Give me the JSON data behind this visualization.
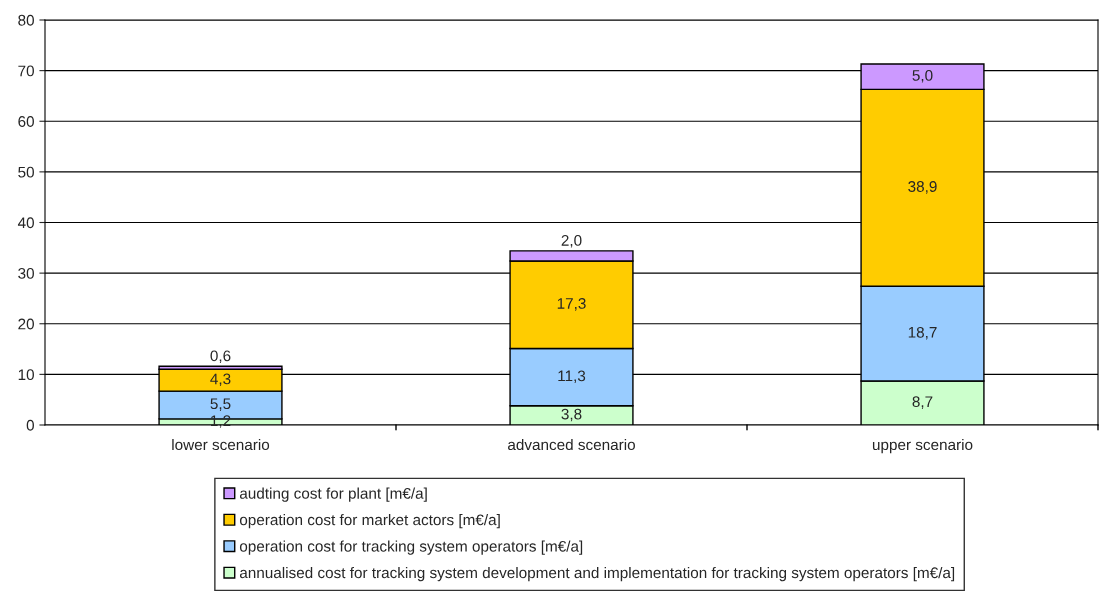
{
  "chart_data": {
    "type": "bar",
    "stacked": true,
    "categories": [
      "lower scenario",
      "advanced scenario",
      "upper scenario"
    ],
    "series": [
      {
        "name": "annualised cost for tracking system development and implementation for tracking system operators [m€/a]",
        "color": "#ccffcc",
        "values": [
          1.2,
          3.8,
          8.7
        ],
        "value_labels": [
          "1,2",
          "3,8",
          "8,7"
        ]
      },
      {
        "name": "operation cost for tracking system operators [m€/a]",
        "color": "#99ccff",
        "values": [
          5.5,
          11.3,
          18.7
        ],
        "value_labels": [
          "5,5",
          "11,3",
          "18,7"
        ]
      },
      {
        "name": "operation cost for market actors [m€/a]",
        "color": "#ffcc00",
        "values": [
          4.3,
          17.3,
          38.9
        ],
        "value_labels": [
          "4,3",
          "17,3",
          "38,9"
        ]
      },
      {
        "name": "audting cost for plant [m€/a]",
        "color": "#cc99ff",
        "values": [
          0.6,
          2.0,
          5.0
        ],
        "value_labels": [
          "0,6",
          "2,0",
          "5,0"
        ]
      }
    ],
    "ylim": [
      0,
      80
    ],
    "yticks": [
      0,
      10,
      20,
      30,
      40,
      50,
      60,
      70,
      80
    ],
    "grid": "y",
    "legend": "bottom"
  }
}
